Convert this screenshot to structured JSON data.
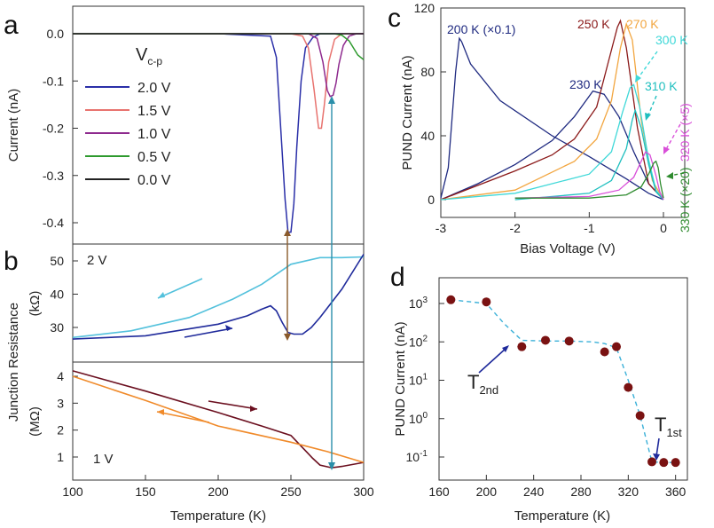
{
  "panel_labels": {
    "a": "a",
    "b": "b",
    "c": "c",
    "d": "d"
  },
  "colors": {
    "v20": "#2a2fa8",
    "v15": "#e8736f",
    "v10": "#8e2a8e",
    "v05": "#2e9a2e",
    "v00": "#222222",
    "b2V_cool": "#53c1dc",
    "b2V_heat": "#1f2a9b",
    "b1V_heat": "#6b0f1f",
    "b1V_cool": "#f08a2a",
    "arrow_brown": "#8a5a2b",
    "arrow_teal": "#2a8faa",
    "c200": "#1f2a80",
    "c230": "#1f2a80",
    "c250": "#8b1a1a",
    "c270": "#f2a640",
    "c300": "#3fd8d8",
    "c310": "#1fbfbf",
    "c320": "#d94fd9",
    "c330": "#2e8b2e",
    "d_point": "#7a1212",
    "d_fit": "#3ab0d8"
  },
  "chart_data": [
    {
      "panel": "a",
      "type": "line",
      "xlabel": "",
      "ylabel": "Current (nA)",
      "xlim": [
        100,
        300
      ],
      "ylim": [
        -0.45,
        0.03
      ],
      "y_ticks": [
        "0.0",
        "-0.1",
        "-0.2",
        "-0.3",
        "-0.4"
      ],
      "legend_title": "V",
      "legend_title_sub": "c-p",
      "series": [
        {
          "name": "2.0 V",
          "color_key": "v20",
          "x": [
            100,
            200,
            236,
            240,
            243,
            246,
            248,
            250,
            252,
            254,
            257,
            260,
            265,
            270,
            300
          ],
          "y": [
            0,
            0,
            -0.005,
            -0.05,
            -0.2,
            -0.35,
            -0.42,
            -0.42,
            -0.36,
            -0.24,
            -0.1,
            -0.03,
            -0.008,
            0,
            0
          ]
        },
        {
          "name": "1.5 V",
          "color_key": "v15",
          "x": [
            100,
            250,
            258,
            262,
            266,
            269,
            271,
            273,
            276,
            280,
            285,
            300
          ],
          "y": [
            0,
            0,
            -0.005,
            -0.03,
            -0.12,
            -0.2,
            -0.2,
            -0.15,
            -0.06,
            -0.012,
            0,
            0
          ]
        },
        {
          "name": "1.0 V",
          "color_key": "v10",
          "x": [
            100,
            262,
            268,
            272,
            275,
            277,
            279,
            281,
            283,
            286,
            290,
            295,
            300
          ],
          "y": [
            0,
            0,
            -0.01,
            -0.06,
            -0.12,
            -0.133,
            -0.13,
            -0.105,
            -0.065,
            -0.025,
            -0.005,
            0,
            0
          ]
        },
        {
          "name": "0.5 V",
          "color_key": "v05",
          "x": [
            100,
            280,
            285,
            290,
            293,
            296,
            300
          ],
          "y": [
            0,
            0,
            -0.003,
            -0.015,
            -0.03,
            -0.045,
            -0.055
          ]
        },
        {
          "name": "0.0 V",
          "color_key": "v00",
          "x": [
            100,
            300
          ],
          "y": [
            0,
            0
          ]
        }
      ]
    },
    {
      "panel": "b-top",
      "type": "line",
      "ylabel": "(kΩ)",
      "ylim": [
        25,
        53
      ],
      "y_ticks": [
        "50",
        "40",
        "30"
      ],
      "annotation": "2 V",
      "series": [
        {
          "name": "cooling",
          "color_key": "b2V_cool",
          "x": [
            100,
            140,
            180,
            210,
            230,
            250,
            270,
            285,
            300
          ],
          "y": [
            27,
            29,
            33,
            38.5,
            43,
            49,
            51,
            51,
            51.2
          ]
        },
        {
          "name": "heating",
          "color_key": "b2V_heat",
          "x": [
            100,
            150,
            200,
            220,
            230,
            236,
            240,
            244,
            248,
            252,
            258,
            264,
            270,
            285,
            300
          ],
          "y": [
            26.5,
            27.5,
            31,
            33.5,
            35.5,
            36.5,
            35,
            31.5,
            28.5,
            28,
            28,
            30,
            33,
            41.5,
            52
          ]
        }
      ]
    },
    {
      "panel": "b-bottom",
      "type": "line",
      "xlabel": "Temperature (K)",
      "ylabel": "(MΩ)",
      "ylim": [
        0.5,
        4.4
      ],
      "y_ticks": [
        "4",
        "3",
        "2",
        "1"
      ],
      "x_ticks": [
        "100",
        "150",
        "200",
        "250",
        "300"
      ],
      "annotation": "1 V",
      "shared_ylabel": "Junction Resistance",
      "series": [
        {
          "name": "heating",
          "color_key": "b1V_heat",
          "x": [
            100,
            150,
            200,
            230,
            250,
            258,
            265,
            270,
            278,
            285,
            300
          ],
          "y": [
            4.2,
            3.45,
            2.65,
            2.15,
            1.8,
            1.35,
            0.95,
            0.7,
            0.6,
            0.65,
            0.8
          ]
        },
        {
          "name": "cooling",
          "color_key": "b1V_cool",
          "x": [
            100,
            150,
            200,
            250,
            275,
            300
          ],
          "y": [
            4.0,
            3.1,
            2.15,
            1.55,
            1.2,
            0.8
          ]
        }
      ]
    },
    {
      "panel": "c",
      "type": "line",
      "xlabel": "Bias Voltage (V)",
      "ylabel": "PUND Current (nA)",
      "xlim": [
        -3,
        0.3
      ],
      "ylim": [
        -5,
        120
      ],
      "x_ticks": [
        "-3",
        "-2",
        "-1",
        "0"
      ],
      "y_ticks": [
        "0",
        "40",
        "80",
        "120"
      ],
      "series": [
        {
          "name": "200 K (×0.1)",
          "color_key": "c200",
          "x": [
            -3.0,
            -2.9,
            -2.8,
            -2.75,
            -2.72,
            -2.6,
            -2.2,
            -1.5,
            -1.0,
            -0.5,
            -0.2,
            0.0
          ],
          "y": [
            1,
            20,
            80,
            101,
            99,
            85,
            62,
            40,
            27,
            13,
            4,
            0
          ]
        },
        {
          "name": "230 K",
          "color_key": "c230",
          "x": [
            -3.0,
            -2.5,
            -2.0,
            -1.5,
            -1.2,
            -0.95,
            -0.8,
            -0.6,
            -0.4,
            -0.2,
            0.0
          ],
          "y": [
            0,
            10,
            22,
            37,
            52,
            68,
            66,
            52,
            30,
            10,
            0
          ]
        },
        {
          "name": "250 K",
          "color_key": "c250",
          "x": [
            -3.0,
            -2.0,
            -1.5,
            -1.2,
            -0.9,
            -0.75,
            -0.62,
            -0.58,
            -0.5,
            -0.35,
            -0.2,
            0.0
          ],
          "y": [
            0,
            18,
            28,
            38,
            58,
            85,
            108,
            112,
            95,
            45,
            10,
            0
          ]
        },
        {
          "name": "270 K",
          "color_key": "c270",
          "x": [
            -3.0,
            -2.0,
            -1.2,
            -0.9,
            -0.7,
            -0.58,
            -0.5,
            -0.42,
            -0.3,
            -0.15,
            0.0
          ],
          "y": [
            0,
            6,
            24,
            38,
            62,
            95,
            110,
            100,
            50,
            12,
            0
          ]
        },
        {
          "name": "300 K",
          "color_key": "c300",
          "x": [
            -3.0,
            -2.0,
            -1.0,
            -0.7,
            -0.55,
            -0.45,
            -0.4,
            -0.32,
            -0.2,
            -0.1,
            0.0
          ],
          "y": [
            0,
            4,
            16,
            30,
            55,
            70,
            72,
            58,
            25,
            6,
            0
          ]
        },
        {
          "name": "310 K",
          "color_key": "c310",
          "x": [
            -2.0,
            -1.0,
            -0.7,
            -0.5,
            -0.42,
            -0.38,
            -0.3,
            -0.2,
            -0.1,
            0.0
          ],
          "y": [
            0,
            4,
            12,
            32,
            50,
            56,
            45,
            22,
            5,
            0
          ]
        },
        {
          "name": "320 K (×5)",
          "color_key": "c320",
          "x": [
            -2.0,
            -1.0,
            -0.6,
            -0.4,
            -0.3,
            -0.24,
            -0.18,
            -0.1,
            -0.05,
            0.0
          ],
          "y": [
            1,
            2,
            6,
            14,
            24,
            30,
            28,
            15,
            5,
            0
          ]
        },
        {
          "name": "330 K (×20)",
          "color_key": "c330",
          "x": [
            -2.0,
            -1.0,
            -0.5,
            -0.3,
            -0.2,
            -0.13,
            -0.1,
            -0.07,
            -0.04,
            0.0
          ],
          "y": [
            1,
            1,
            3,
            8,
            16,
            23,
            24,
            20,
            10,
            1
          ]
        }
      ]
    },
    {
      "panel": "d",
      "type": "scatter",
      "xlabel": "Temperature (K)",
      "ylabel": "PUND Current (nA)",
      "xlim": [
        160,
        370
      ],
      "y_log_range": [
        -1.4,
        3.3
      ],
      "x_ticks": [
        "160",
        "200",
        "240",
        "280",
        "320",
        "360"
      ],
      "y_ticks": [
        {
          "base": "10",
          "exp": "3"
        },
        {
          "base": "10",
          "exp": "2"
        },
        {
          "base": "10",
          "exp": "1"
        },
        {
          "base": "10",
          "exp": "0"
        },
        {
          "base": "10",
          "exp": "-1"
        }
      ],
      "x": [
        170,
        200,
        230,
        250,
        270,
        300,
        310,
        320,
        330,
        340,
        350,
        360
      ],
      "y": [
        1250,
        1100,
        75,
        110,
        105,
        55,
        75,
        6.5,
        1.2,
        0.075,
        0.072,
        0.072
      ],
      "fit_x": [
        170,
        200,
        215,
        230,
        250,
        270,
        290,
        300,
        310,
        320,
        330,
        340,
        350,
        360
      ],
      "fit_y": [
        1250,
        1000,
        300,
        110,
        105,
        105,
        100,
        90,
        70,
        10,
        1.2,
        0.075,
        0.072,
        0.072
      ],
      "annotations": [
        {
          "label": "T",
          "sub": "2nd"
        },
        {
          "label": "T",
          "sub": "1st"
        }
      ]
    }
  ]
}
